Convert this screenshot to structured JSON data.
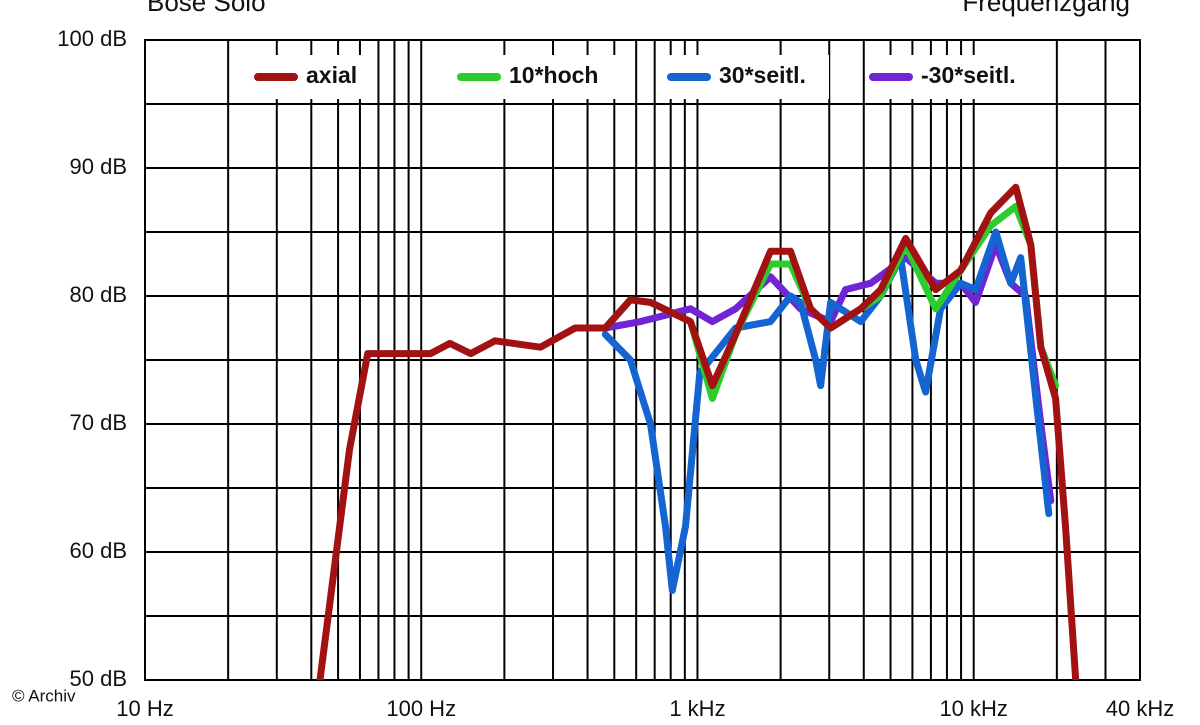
{
  "chart_data": {
    "type": "line",
    "title": "Bose Solo",
    "subtitle": "Frequenzgang",
    "credit": "© Archiv",
    "log_x": true,
    "grid": true,
    "legend": "top",
    "xlim": [
      10,
      40000
    ],
    "xticks": [
      {
        "value": 10,
        "label": "10 Hz"
      },
      {
        "value": 100,
        "label": "100 Hz"
      },
      {
        "value": 1000,
        "label": "1 kHz"
      },
      {
        "value": 10000,
        "label": "10 kHz"
      },
      {
        "value": 40000,
        "label": "40 kHz"
      }
    ],
    "x_grid_minor": [
      20,
      30,
      40,
      50,
      60,
      70,
      80,
      90,
      200,
      300,
      400,
      500,
      600,
      700,
      800,
      900,
      2000,
      3000,
      4000,
      5000,
      6000,
      7000,
      8000,
      9000,
      20000,
      30000
    ],
    "ylim": [
      50,
      100
    ],
    "yticks": [
      {
        "value": 50,
        "label": "50 dB"
      },
      {
        "value": 60,
        "label": "60 dB"
      },
      {
        "value": 70,
        "label": "70 dB"
      },
      {
        "value": 80,
        "label": "80 dB"
      },
      {
        "value": 90,
        "label": "90 dB"
      },
      {
        "value": 100,
        "label": "100 dB"
      }
    ],
    "y_grid_minor": [
      55,
      65,
      75,
      85,
      95
    ],
    "series": [
      {
        "name": "axial",
        "color": "#a31212",
        "x": [
          43,
          55,
          64,
          84,
          108,
          127,
          151,
          185,
          270,
          361,
          464,
          572,
          676,
          944,
          1133,
          1374,
          1838,
          2171,
          2567,
          3034,
          3898,
          4607,
          5672,
          7285,
          8970,
          11530,
          14200,
          16100,
          17500,
          19800,
          21500,
          23400
        ],
        "values": [
          50,
          68,
          75.5,
          75.5,
          75.5,
          76.3,
          75.5,
          76.5,
          76,
          77.5,
          77.5,
          79.7,
          79.5,
          78,
          73,
          77,
          83.5,
          83.5,
          79,
          77.5,
          79,
          80.5,
          84.5,
          80.5,
          82,
          86.5,
          88.5,
          84,
          76,
          72,
          62,
          50
        ]
      },
      {
        "name": "10*hoch",
        "color": "#2ccc2c",
        "x": [
          464,
          572,
          676,
          944,
          1133,
          1374,
          1838,
          2171,
          2567,
          3034,
          3898,
          4607,
          5672,
          7285,
          8970,
          11530,
          14200,
          16100,
          17500,
          19800
        ],
        "values": [
          77.5,
          79.7,
          79.5,
          78,
          72,
          77,
          82.5,
          82.5,
          79,
          77.5,
          79,
          80,
          84,
          79,
          82,
          85.5,
          87,
          84,
          76,
          73
        ]
      },
      {
        "name": "30*seitl.",
        "color": "#1464d2",
        "x": [
          464,
          572,
          676,
          766,
          811,
          905,
          1020,
          1374,
          1838,
          2171,
          2360,
          2680,
          2790,
          3034,
          3898,
          4607,
          5440,
          6170,
          6700,
          7590,
          8970,
          10160,
          12020,
          13620,
          14800,
          16800,
          18700
        ],
        "values": [
          77,
          75,
          70,
          62,
          57,
          62,
          74,
          77.5,
          78,
          80,
          79.5,
          75,
          73,
          79.5,
          78,
          80,
          83,
          75,
          72.5,
          79,
          81,
          80.5,
          85,
          81,
          83,
          72,
          63
        ]
      },
      {
        "name": "-30*seitl.",
        "color": "#7024d4",
        "x": [
          464,
          621,
          944,
          1133,
          1374,
          1838,
          2360,
          3034,
          3435,
          4240,
          5672,
          7285,
          8970,
          10160,
          12020,
          13620,
          15420,
          17500,
          19010
        ],
        "values": [
          77.5,
          78,
          79,
          78,
          79,
          81.5,
          79,
          78,
          80.5,
          81,
          83,
          81,
          81,
          79.5,
          84,
          81,
          80,
          70,
          64
        ]
      }
    ]
  }
}
